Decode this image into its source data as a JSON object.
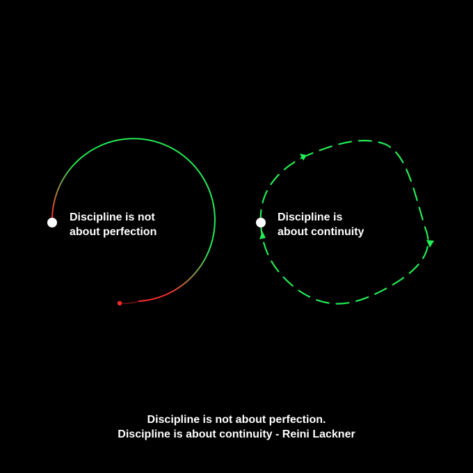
{
  "left_diagram": {
    "label_line1": "Discipline is not",
    "label_line2": "about perfection",
    "gradient_start_color": "#ff2d2d",
    "gradient_end_color": "#22ee55",
    "start_dot_color": "#ffffff",
    "end_dot_color": "#ff2a2a"
  },
  "right_diagram": {
    "label_line1": "Discipline is",
    "label_line2": "about continuity",
    "loop_color": "#22ee55",
    "start_dot_color": "#ffffff"
  },
  "quote": {
    "line1": "Discipline is not about perfection.",
    "line2": "Discipline is about continuity - Reini Lackner"
  },
  "colors": {
    "background": "#000000",
    "text": "#ffffff"
  }
}
